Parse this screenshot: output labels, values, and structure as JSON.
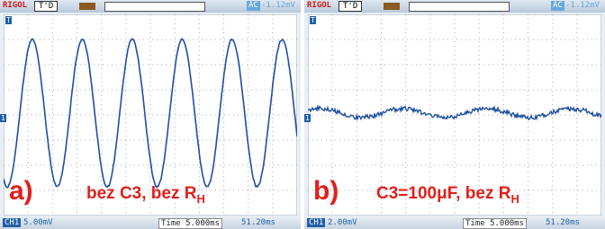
{
  "panels": [
    {
      "brand": "RIGOL",
      "trigger_state": "T'D",
      "coupling": "AC",
      "trigger_level": "-1.12mV",
      "trigger_marker": "T",
      "channel_marker": "1",
      "channel": "CH1",
      "volts_div": "5.00mV",
      "timebase": "Time 5.000ms",
      "offset": "51.20ms",
      "label": "a)",
      "caption": "bez C3, bez R",
      "caption_sub": "H"
    },
    {
      "brand": "RIGOL",
      "trigger_state": "T'D",
      "coupling": "AC",
      "trigger_level": "-1.12mV",
      "trigger_marker": "T",
      "channel_marker": "1",
      "channel": "CH1",
      "volts_div": "2.00mV",
      "timebase": "Time 5.000ms",
      "offset": "51.20ms",
      "label": "b)",
      "caption": "C3=100μF, bez R",
      "caption_sub": "H"
    }
  ]
}
